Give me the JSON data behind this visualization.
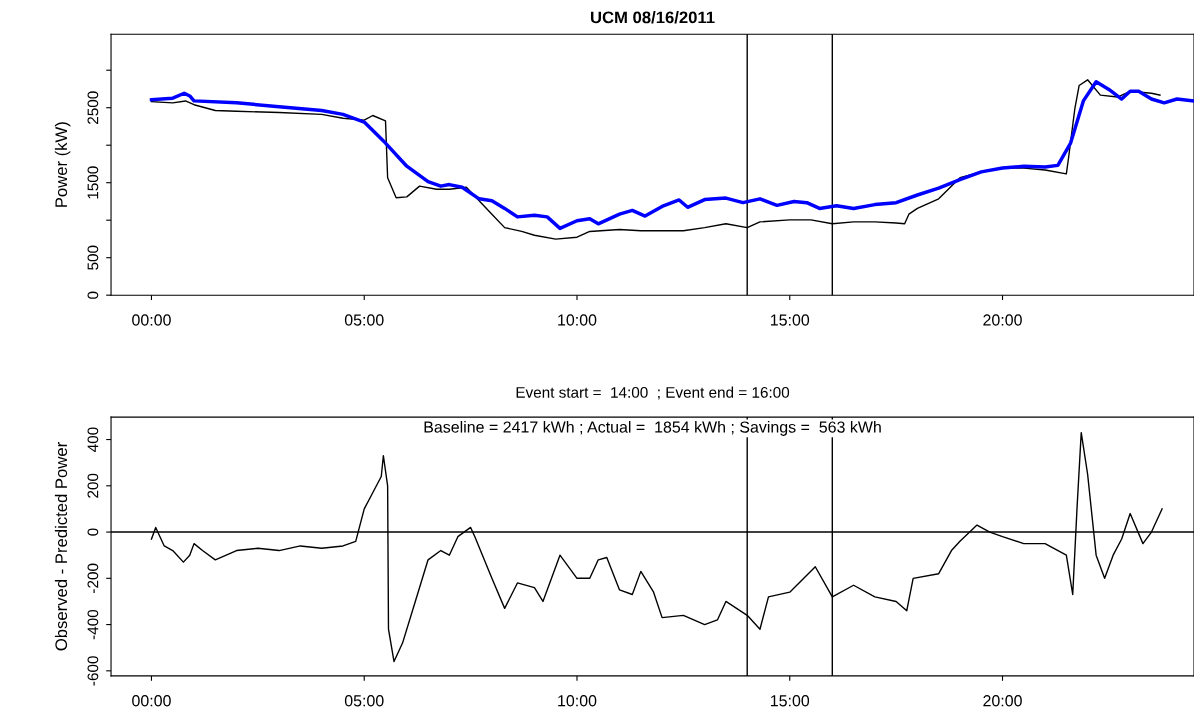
{
  "chart_data": [
    {
      "type": "line",
      "title": "UCM 08/16/2011",
      "ylabel": "Power (kW)",
      "xlim": [
        -0.95,
        24.5
      ],
      "ylim": [
        0,
        3480
      ],
      "xticks": [
        {
          "value": 0,
          "label": "00:00"
        },
        {
          "value": 5,
          "label": "05:00"
        },
        {
          "value": 10,
          "label": "10:00"
        },
        {
          "value": 15,
          "label": "15:00"
        },
        {
          "value": 20,
          "label": "20:00"
        }
      ],
      "yticks": [
        0,
        500,
        {
          "value": 1000,
          "label": null
        },
        1500,
        {
          "value": 2000,
          "label": null
        },
        2500,
        {
          "value": 3000,
          "label": null
        }
      ],
      "grid": false,
      "ref_lines": [
        {
          "axis": "x",
          "value": 14,
          "color": "#000000"
        },
        {
          "axis": "x",
          "value": 16,
          "color": "#000000"
        }
      ],
      "series": [
        {
          "color": "#000000",
          "x": [
            0,
            0.5,
            0.8,
            1.0,
            1.5,
            2,
            3,
            4,
            4.5,
            5,
            5.2,
            5.5,
            5.55,
            5.75,
            6.0,
            6.3,
            6.7,
            7.0,
            7.4,
            7.7,
            8.0,
            8.3,
            8.7,
            9.0,
            9.5,
            10,
            10.3,
            11,
            11.5,
            12,
            12.5,
            13,
            13.5,
            14,
            14.3,
            15,
            15.5,
            16,
            16.5,
            17,
            17.5,
            17.7,
            17.8,
            18,
            18.5,
            19,
            19.5,
            20,
            20.5,
            21,
            21.5,
            21.55,
            21.7,
            21.8,
            22,
            22.3,
            22.7,
            23,
            23.5,
            23.7
          ],
          "values": [
            2580,
            2565,
            2590,
            2540,
            2463,
            2452,
            2437,
            2411,
            2360,
            2335,
            2396,
            2324,
            1567,
            1300,
            1311,
            1454,
            1413,
            1413,
            1439,
            1260,
            1080,
            901,
            850,
            799,
            748,
            773,
            850,
            875,
            860,
            860,
            860,
            901,
            952,
            901,
            978,
            1004,
            1004,
            952,
            978,
            978,
            963,
            952,
            1080,
            1157,
            1285,
            1567,
            1644,
            1695,
            1695,
            1669,
            1618,
            1823,
            2488,
            2796,
            2872,
            2668,
            2642,
            2719,
            2693,
            2668
          ]
        },
        {
          "color": "#0000ff",
          "x": [
            0,
            0.5,
            0.77,
            0.9,
            1.0,
            2,
            3,
            4,
            4.5,
            5,
            5.5,
            6.0,
            6.5,
            6.8,
            7.0,
            7.3,
            7.7,
            8.0,
            8.3,
            8.6,
            9,
            9.3,
            9.6,
            10,
            10.3,
            10.5,
            11,
            11.3,
            11.6,
            12,
            12.4,
            12.6,
            13,
            13.5,
            13.9,
            14.3,
            14.7,
            15.1,
            15.4,
            15.7,
            16.1,
            16.5,
            17,
            17.5,
            18,
            18.5,
            19,
            19.5,
            20,
            20.5,
            21,
            21.3,
            21.6,
            21.9,
            22.2,
            22.5,
            22.8,
            23.0,
            23.2,
            23.5,
            23.8,
            24.1,
            24.5
          ],
          "values": [
            2606,
            2627,
            2693,
            2657,
            2591,
            2565,
            2514,
            2462,
            2411,
            2309,
            2028,
            1720,
            1515,
            1454,
            1475,
            1439,
            1285,
            1260,
            1157,
            1044,
            1065,
            1044,
            891,
            993,
            1019,
            952,
            1080,
            1131,
            1055,
            1183,
            1270,
            1172,
            1275,
            1295,
            1234,
            1285,
            1198,
            1249,
            1234,
            1157,
            1193,
            1157,
            1208,
            1234,
            1336,
            1428,
            1541,
            1644,
            1695,
            1720,
            1710,
            1731,
            2028,
            2591,
            2847,
            2744,
            2616,
            2719,
            2719,
            2616,
            2565,
            2616,
            2591
          ]
        }
      ]
    },
    {
      "type": "line",
      "title": "Event start =  14:00  ; Event end = 16:00",
      "ylabel": "Observed - Predicted Power",
      "xlim": [
        -0.95,
        24.5
      ],
      "ylim": [
        -622,
        497
      ],
      "xticks": [
        {
          "value": 0,
          "label": "00:00"
        },
        {
          "value": 5,
          "label": "05:00"
        },
        {
          "value": 10,
          "label": "10:00"
        },
        {
          "value": 15,
          "label": "15:00"
        },
        {
          "value": 20,
          "label": "20:00"
        }
      ],
      "yticks": [
        -600,
        -400,
        -200,
        0,
        200,
        400
      ],
      "grid": false,
      "annotations": [
        "Baseline = 2417 kWh ; Actual =  1854 kWh ; Savings =  563 kWh"
      ],
      "ref_lines": [
        {
          "axis": "x",
          "value": 14,
          "color": "#000000"
        },
        {
          "axis": "x",
          "value": 16,
          "color": "#000000"
        },
        {
          "axis": "y",
          "value": 0,
          "color": "#000000"
        }
      ],
      "series": [
        {
          "color": "#000000",
          "x": [
            0,
            0.1,
            0.3,
            0.5,
            0.75,
            0.9,
            1.0,
            1.2,
            1.5,
            2,
            2.5,
            3,
            3.5,
            4,
            4.5,
            4.8,
            5.0,
            5.2,
            5.4,
            5.45,
            5.55,
            5.57,
            5.7,
            5.9,
            6.2,
            6.5,
            6.8,
            7.0,
            7.2,
            7.5,
            7.6,
            8.0,
            8.3,
            8.6,
            9.0,
            9.2,
            9.6,
            10,
            10.3,
            10.5,
            10.7,
            11,
            11.3,
            11.5,
            11.8,
            12,
            12.5,
            13,
            13.3,
            13.5,
            14,
            14.3,
            14.5,
            15,
            15.6,
            16,
            16.5,
            17,
            17.5,
            17.75,
            17.9,
            18.5,
            18.8,
            19,
            19.4,
            19.7,
            20,
            20.5,
            21,
            21.5,
            21.65,
            21.75,
            21.85,
            22,
            22.2,
            22.4,
            22.6,
            22.8,
            23,
            23.3,
            23.5,
            23.75
          ],
          "values": [
            -30,
            20,
            -60,
            -80,
            -130,
            -100,
            -50,
            -80,
            -120,
            -80,
            -70,
            -80,
            -60,
            -70,
            -60,
            -40,
            100,
            170,
            240,
            330,
            200,
            -420,
            -560,
            -480,
            -300,
            -120,
            -80,
            -100,
            -20,
            20,
            -20,
            -200,
            -330,
            -220,
            -240,
            -300,
            -100,
            -200,
            -200,
            -120,
            -110,
            -250,
            -270,
            -170,
            -260,
            -370,
            -360,
            -400,
            -380,
            -300,
            -360,
            -420,
            -280,
            -260,
            -150,
            -280,
            -230,
            -280,
            -300,
            -340,
            -200,
            -180,
            -80,
            -40,
            30,
            0,
            -20,
            -50,
            -50,
            -100,
            -270,
            100,
            430,
            250,
            -100,
            -200,
            -100,
            -30,
            80,
            -50,
            0,
            100
          ]
        }
      ]
    }
  ]
}
